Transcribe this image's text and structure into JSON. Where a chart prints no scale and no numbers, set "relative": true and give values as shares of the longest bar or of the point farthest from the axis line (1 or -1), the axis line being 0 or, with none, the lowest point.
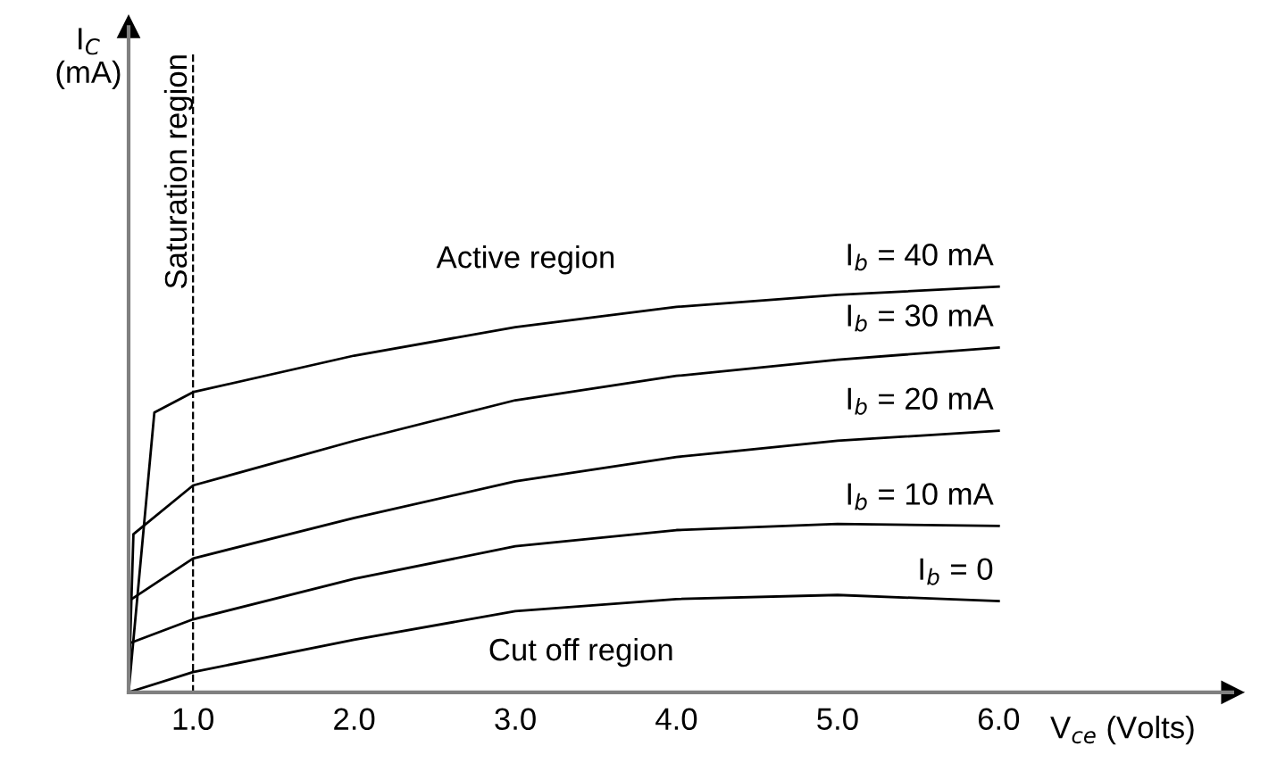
{
  "chart_data": {
    "type": "line",
    "relative": true,
    "xlabel": "V$_{ce}$ (Volts)",
    "xlim": [
      0.6,
      7.45
    ],
    "xticks": [
      {
        "value": 1,
        "label": "1.0"
      },
      {
        "value": 2,
        "label": "2.0"
      },
      {
        "value": 3,
        "label": "3.0"
      },
      {
        "value": 4,
        "label": "4.0"
      },
      {
        "value": 5,
        "label": "5.0"
      },
      {
        "value": 6,
        "label": "6.0"
      }
    ],
    "tick_labels": "x",
    "grid": false,
    "legend": false,
    "marker": "none",
    "line_style": "solid",
    "series": [
      {
        "name": "I$_{b}$ = 40 mA",
        "color": "#000000",
        "x": [
          0.6,
          0.76,
          1.0,
          2.0,
          3.0,
          4.0,
          5.0,
          6.0
        ],
        "values": [
          0,
          0.69,
          0.74,
          0.83,
          0.9,
          0.95,
          0.98,
          1.0
        ]
      },
      {
        "name": "I$_{b}$ = 30 mA",
        "color": "#000000",
        "x": [
          0.6,
          0.63,
          1.0,
          2.0,
          3.0,
          4.0,
          5.0,
          6.0
        ],
        "values": [
          0,
          0.39,
          0.51,
          0.62,
          0.72,
          0.78,
          0.82,
          0.85
        ]
      },
      {
        "name": "I$_{b}$ = 20 mA",
        "color": "#000000",
        "x": [
          0.6,
          1.0,
          2.0,
          3.0,
          4.0,
          5.0,
          6.0
        ],
        "values": [
          0.225,
          0.33,
          0.43,
          0.52,
          0.58,
          0.62,
          0.645
        ]
      },
      {
        "name": "I$_{b}$ = 10 mA",
        "color": "#000000",
        "x": [
          0.6,
          1.0,
          2.0,
          3.0,
          4.0,
          5.0,
          6.0
        ],
        "values": [
          0.12,
          0.18,
          0.28,
          0.36,
          0.4,
          0.415,
          0.41
        ]
      },
      {
        "name": "I$_{b}$ = 0",
        "color": "#000000",
        "x": [
          0.6,
          1.0,
          2.0,
          3.0,
          4.0,
          5.0,
          6.0
        ],
        "values": [
          0,
          0.05,
          0.13,
          0.2,
          0.23,
          0.24,
          0.225
        ]
      }
    ],
    "ref_lines": [
      {
        "axis": "x",
        "value": 1.0,
        "label": "Saturation region",
        "color": "#000000",
        "line_style": "dashed"
      }
    ],
    "annotations": [
      "Active region",
      "Cut off region",
      "I$_{C}$\n(mA)"
    ]
  }
}
